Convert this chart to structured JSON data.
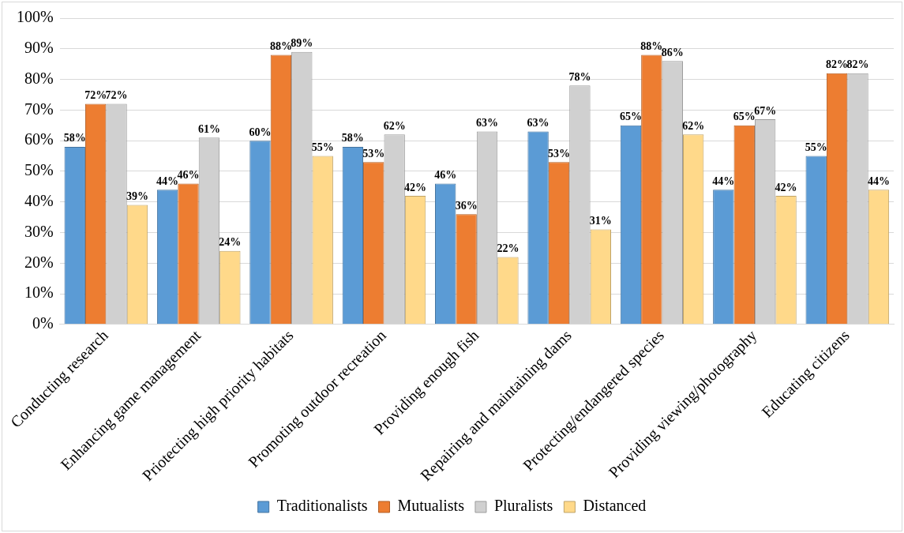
{
  "chart_data": {
    "type": "bar",
    "categories": [
      "Conducting research",
      "Enhancing game management",
      "Priotecting high priority habitats",
      "Promoting outdoor recreation",
      "Providing enough fish",
      "Repairing and maintaining dams",
      "Protecting/endangered species",
      "Providing viewing/photography",
      "Educating citizens"
    ],
    "series": [
      {
        "name": "Traditionalists",
        "color": "#5b9bd5",
        "values": [
          58,
          44,
          60,
          58,
          46,
          63,
          65,
          44,
          55
        ],
        "value_labels": [
          "58%",
          "44%",
          "60%",
          "58%",
          "46%",
          "63%",
          "65%",
          "44%",
          "55%"
        ]
      },
      {
        "name": "Mutualists",
        "color": "#ed7d31",
        "values": [
          72,
          46,
          88,
          53,
          36,
          53,
          88,
          65,
          82
        ],
        "value_labels": [
          "72%",
          "46%",
          "88%",
          "53%",
          "36%",
          "53%",
          "88%",
          "65%",
          "82%"
        ]
      },
      {
        "name": "Pluralists",
        "color": "#d0d0d0",
        "values": [
          72,
          61,
          89,
          62,
          63,
          78,
          86,
          67,
          82
        ],
        "value_labels": [
          "72%",
          "61%",
          "89%",
          "62%",
          "63%",
          "78%",
          "86%",
          "67%",
          "82%"
        ]
      },
      {
        "name": "Distanced",
        "color": "#ffd98a",
        "values": [
          39,
          24,
          55,
          42,
          22,
          31,
          62,
          42,
          44
        ],
        "value_labels": [
          "39%",
          "24%",
          "55%",
          "42%",
          "22%",
          "31%",
          "62%",
          "42%",
          "44%"
        ]
      }
    ],
    "ylim": [
      0,
      100
    ],
    "yticks": [
      {
        "value": 0,
        "label": "0%"
      },
      {
        "value": 10,
        "label": "10%"
      },
      {
        "value": 20,
        "label": "20%"
      },
      {
        "value": 30,
        "label": "30%"
      },
      {
        "value": 40,
        "label": "40%"
      },
      {
        "value": 50,
        "label": "50%"
      },
      {
        "value": 60,
        "label": "60%"
      },
      {
        "value": 70,
        "label": "70%"
      },
      {
        "value": 80,
        "label": "80%"
      },
      {
        "value": 90,
        "label": "90%"
      },
      {
        "value": 100,
        "label": "100%"
      }
    ],
    "grid": "y",
    "legend": "bottom"
  }
}
